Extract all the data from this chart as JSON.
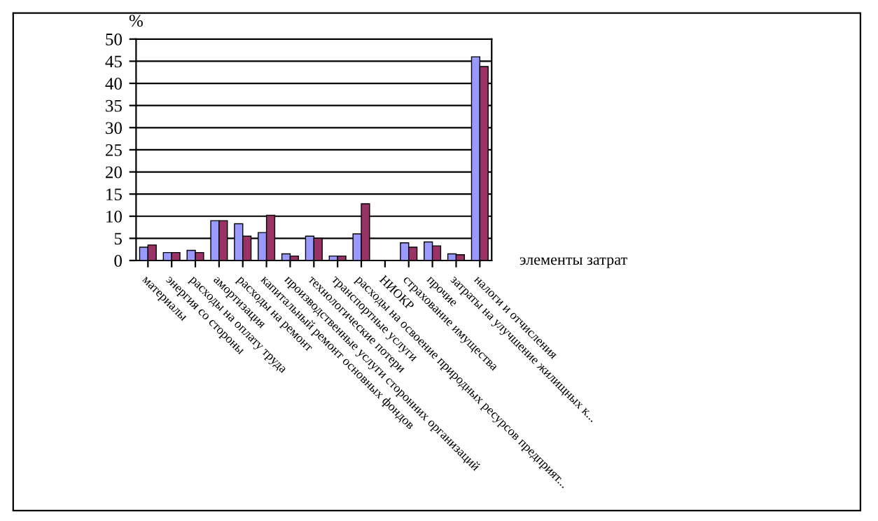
{
  "chart_data": {
    "type": "bar",
    "ylabel": "%",
    "xlabel": "элементы затрат",
    "categories": [
      "материалы",
      "энергия со стороны",
      "расходы на оплату труда",
      "амортизация",
      "расходы на ремонт",
      "капитальный ремонт основных фондов",
      "производственные услуги сторонних организаций",
      "технологические потери",
      "транспортные услуги",
      "расходы на освоение природных ресурсов предприят...",
      "НИОКР",
      "страхование имущества",
      "прочие",
      "затраты на улучшение жилищных к...",
      "налоги и отчисления"
    ],
    "series": [
      {
        "color": "#9999ff",
        "values": [
          3,
          1.8,
          2.3,
          9,
          8.3,
          6.3,
          1.5,
          5.5,
          1,
          6,
          0,
          4,
          4.2,
          1.5,
          46
        ]
      },
      {
        "color": "#993366",
        "values": [
          3.5,
          1.8,
          1.8,
          9,
          5.5,
          10.2,
          1,
          5,
          1,
          12.8,
          0,
          3,
          3.3,
          1.3,
          43.8
        ]
      }
    ],
    "ylim": [
      0,
      50
    ],
    "yticks": [
      0,
      5,
      10,
      15,
      20,
      25,
      30,
      35,
      40,
      45,
      50
    ],
    "grid": "y",
    "legend": false
  }
}
